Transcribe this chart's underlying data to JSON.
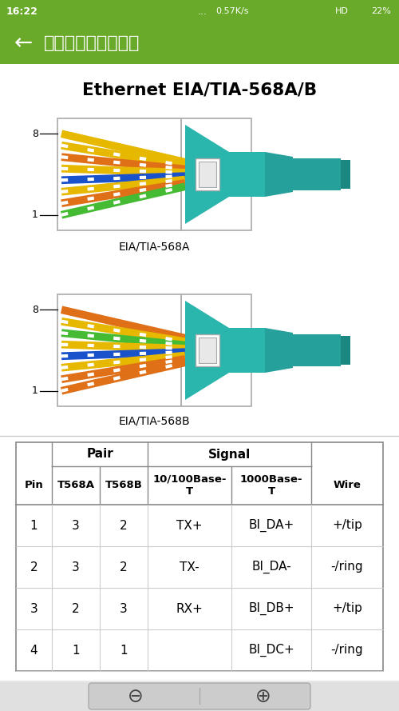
{
  "status_bar_bg": "#6aaa2a",
  "nav_bar_bg": "#6aaa2a",
  "main_bg": "#f5f5f5",
  "main_title": "Ethernet EIA/TIA-568A/B",
  "label_568A": "EIA/TIA-568A",
  "label_568B": "EIA/TIA-568B",
  "teal_color": "#2ab5ad",
  "teal_mid": "#25a09a",
  "teal_dark": "#1a8880",
  "wire_colors_568A": [
    [
      "#e8c020",
      "#8b6914",
      "brown_stripe"
    ],
    [
      "#e8c020",
      "#ffffff",
      "white_stripe"
    ],
    [
      "#e07820",
      "#ffffff",
      "white_stripe"
    ],
    [
      "#e8c020",
      "#ffffff",
      "white_stripe"
    ],
    [
      "#1a50cc",
      "#ffffff",
      "white_stripe"
    ],
    [
      "#e8c020",
      "#ffffff",
      "white_stripe"
    ],
    [
      "#e07820",
      "#ffffff",
      "white_stripe"
    ],
    [
      "#33bb33",
      "#ffffff",
      "white_stripe"
    ]
  ],
  "wire_colors_568B": [
    [
      "#e8c020",
      "#8b6914",
      "brown_stripe"
    ],
    [
      "#e8c020",
      "#ffffff",
      "white_stripe"
    ],
    [
      "#33bb33",
      "#ffffff",
      "white_stripe"
    ],
    [
      "#e8c020",
      "#ffffff",
      "white_stripe"
    ],
    [
      "#1a50cc",
      "#ffffff",
      "white_stripe"
    ],
    [
      "#e8c020",
      "#ffffff",
      "white_stripe"
    ],
    [
      "#e07820",
      "#ffffff",
      "white_stripe"
    ],
    [
      "#e07820",
      "#ffffff",
      "white_stripe"
    ]
  ],
  "table_data": [
    [
      "1",
      "3",
      "2",
      "TX+",
      "BI_DA+",
      "+/tip"
    ],
    [
      "2",
      "3",
      "2",
      "TX-",
      "BI_DA-",
      "-/ring"
    ],
    [
      "3",
      "2",
      "3",
      "RX+",
      "BI_DB+",
      "+/tip"
    ],
    [
      "4",
      "1",
      "1",
      "",
      "BI_DC+",
      "-/ring"
    ]
  ]
}
